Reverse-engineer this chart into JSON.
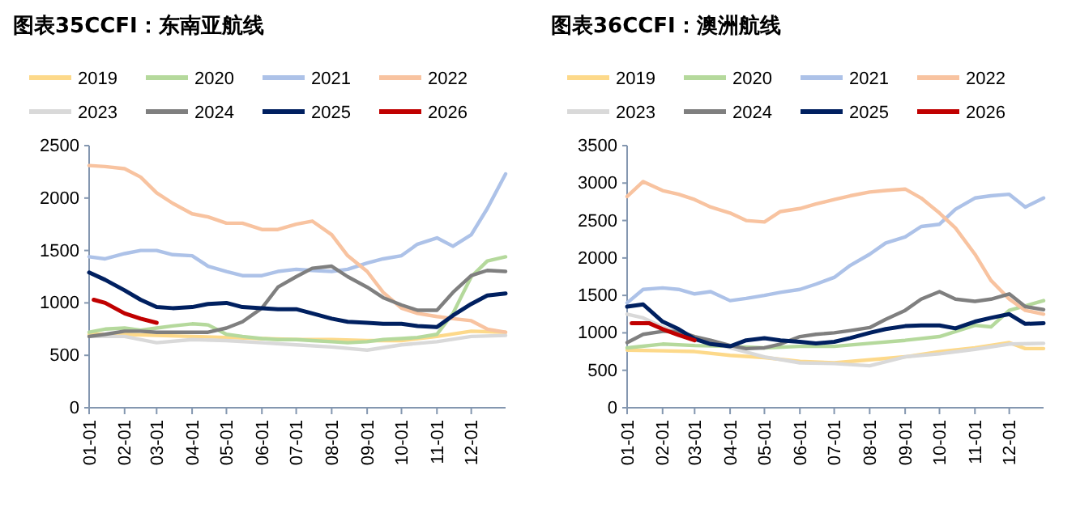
{
  "chart_data": [
    {
      "type": "line",
      "title": "图表35CCFI：东南亚航线",
      "legend": "top",
      "grid": false,
      "marker": "none",
      "line_style": "solid",
      "xlim": [
        "--01-01",
        "--12-31"
      ],
      "ylim": [
        0,
        2500
      ],
      "yticks": [
        0,
        500,
        1000,
        1500,
        2000,
        2500
      ],
      "xticks": [
        {
          "value": "--01-01",
          "label": "01-01"
        },
        {
          "value": "--02-01",
          "label": "02-01"
        },
        {
          "value": "--03-01",
          "label": "03-01"
        },
        {
          "value": "--04-01",
          "label": "04-01"
        },
        {
          "value": "--05-01",
          "label": "05-01"
        },
        {
          "value": "--06-01",
          "label": "06-01"
        },
        {
          "value": "--07-01",
          "label": "07-01"
        },
        {
          "value": "--08-01",
          "label": "08-01"
        },
        {
          "value": "--09-01",
          "label": "09-01"
        },
        {
          "value": "--10-01",
          "label": "10-01"
        },
        {
          "value": "--11-01",
          "label": "11-01"
        },
        {
          "value": "--12-01",
          "label": "12-01"
        }
      ],
      "series": [
        {
          "name": "2019",
          "color": "#fdd98a",
          "x": [
            "--01-01",
            "--02-01",
            "--03-01",
            "--04-01",
            "--05-01",
            "--06-01",
            "--07-01",
            "--08-01",
            "--09-01",
            "--10-01",
            "--11-01",
            "--12-01",
            "--12-31"
          ],
          "values": [
            700,
            700,
            690,
            680,
            670,
            660,
            650,
            650,
            640,
            640,
            680,
            730,
            720
          ]
        },
        {
          "name": "2020",
          "color": "#b5d99c",
          "x": [
            "--01-01",
            "--01-15",
            "--02-01",
            "--02-15",
            "--03-01",
            "--03-15",
            "--04-01",
            "--04-15",
            "--05-01",
            "--05-15",
            "--06-01",
            "--06-15",
            "--07-01",
            "--07-15",
            "--08-01",
            "--08-15",
            "--09-01",
            "--09-15",
            "--10-01",
            "--10-15",
            "--11-01",
            "--11-15",
            "--12-01",
            "--12-15",
            "--12-31"
          ],
          "values": [
            720,
            750,
            760,
            740,
            760,
            780,
            800,
            790,
            700,
            680,
            660,
            650,
            650,
            640,
            630,
            620,
            630,
            650,
            660,
            670,
            700,
            900,
            1250,
            1400,
            1440
          ]
        },
        {
          "name": "2021",
          "color": "#adc2e8",
          "x": [
            "--01-01",
            "--01-15",
            "--02-01",
            "--02-15",
            "--03-01",
            "--03-15",
            "--04-01",
            "--04-15",
            "--05-01",
            "--05-15",
            "--06-01",
            "--06-15",
            "--07-01",
            "--07-15",
            "--08-01",
            "--08-15",
            "--09-01",
            "--09-15",
            "--10-01",
            "--10-15",
            "--11-01",
            "--11-15",
            "--12-01",
            "--12-15",
            "--12-31"
          ],
          "values": [
            1440,
            1420,
            1470,
            1500,
            1500,
            1460,
            1450,
            1350,
            1300,
            1260,
            1260,
            1300,
            1320,
            1310,
            1300,
            1320,
            1380,
            1420,
            1450,
            1560,
            1620,
            1540,
            1650,
            1900,
            2230
          ]
        },
        {
          "name": "2022",
          "color": "#f8c3a0",
          "x": [
            "--01-01",
            "--01-15",
            "--02-01",
            "--02-15",
            "--03-01",
            "--03-15",
            "--04-01",
            "--04-15",
            "--05-01",
            "--05-15",
            "--06-01",
            "--06-15",
            "--07-01",
            "--07-15",
            "--08-01",
            "--08-15",
            "--09-01",
            "--09-15",
            "--10-01",
            "--10-15",
            "--11-01",
            "--11-15",
            "--12-01",
            "--12-15",
            "--12-31"
          ],
          "values": [
            2310,
            2300,
            2280,
            2200,
            2050,
            1950,
            1850,
            1820,
            1760,
            1760,
            1700,
            1700,
            1750,
            1780,
            1650,
            1450,
            1300,
            1100,
            950,
            900,
            870,
            850,
            830,
            750,
            720
          ]
        },
        {
          "name": "2023",
          "color": "#d9d9d9",
          "x": [
            "--01-01",
            "--02-01",
            "--03-01",
            "--04-01",
            "--05-01",
            "--06-01",
            "--07-01",
            "--08-01",
            "--09-01",
            "--10-01",
            "--11-01",
            "--12-01",
            "--12-31"
          ],
          "values": [
            680,
            680,
            620,
            650,
            640,
            620,
            600,
            580,
            550,
            600,
            630,
            680,
            690
          ]
        },
        {
          "name": "2024",
          "color": "#7f7f7f",
          "x": [
            "--01-01",
            "--01-15",
            "--02-01",
            "--02-15",
            "--03-01",
            "--03-15",
            "--04-01",
            "--04-15",
            "--05-01",
            "--05-15",
            "--06-01",
            "--06-15",
            "--07-01",
            "--07-15",
            "--08-01",
            "--08-15",
            "--09-01",
            "--09-15",
            "--10-01",
            "--10-15",
            "--11-01",
            "--11-15",
            "--12-01",
            "--12-15",
            "--12-31"
          ],
          "values": [
            680,
            700,
            730,
            730,
            720,
            720,
            720,
            720,
            760,
            820,
            950,
            1150,
            1250,
            1330,
            1350,
            1250,
            1150,
            1050,
            980,
            930,
            930,
            1100,
            1260,
            1310,
            1300
          ]
        },
        {
          "name": "2025",
          "color": "#002060",
          "x": [
            "--01-01",
            "--01-15",
            "--02-01",
            "--02-15",
            "--03-01",
            "--03-15",
            "--04-01",
            "--04-15",
            "--05-01",
            "--05-15",
            "--06-01",
            "--06-15",
            "--07-01",
            "--07-15",
            "--08-01",
            "--08-15",
            "--09-01",
            "--09-15",
            "--10-01",
            "--10-15",
            "--11-01",
            "--11-15",
            "--12-01",
            "--12-15",
            "--12-31"
          ],
          "values": [
            1290,
            1220,
            1120,
            1030,
            960,
            950,
            960,
            990,
            1000,
            960,
            950,
            940,
            940,
            900,
            850,
            820,
            810,
            800,
            800,
            780,
            770,
            880,
            990,
            1070,
            1090
          ]
        },
        {
          "name": "2026",
          "color": "#c00000",
          "x": [
            "--01-05",
            "--01-15",
            "--02-01",
            "--02-15",
            "--03-01"
          ],
          "values": [
            1030,
            1000,
            900,
            850,
            810
          ]
        }
      ]
    },
    {
      "type": "line",
      "title": "图表36CCFI：澳洲航线",
      "legend": "top",
      "grid": false,
      "marker": "none",
      "line_style": "solid",
      "xlim": [
        "--01-01",
        "--12-31"
      ],
      "ylim": [
        0,
        3500
      ],
      "yticks": [
        0,
        500,
        1000,
        1500,
        2000,
        2500,
        3000,
        3500
      ],
      "xticks": [
        {
          "value": "--01-01",
          "label": "01-01"
        },
        {
          "value": "--02-01",
          "label": "02-01"
        },
        {
          "value": "--03-01",
          "label": "03-01"
        },
        {
          "value": "--04-01",
          "label": "04-01"
        },
        {
          "value": "--05-01",
          "label": "05-01"
        },
        {
          "value": "--06-01",
          "label": "06-01"
        },
        {
          "value": "--07-01",
          "label": "07-01"
        },
        {
          "value": "--08-01",
          "label": "08-01"
        },
        {
          "value": "--09-01",
          "label": "09-01"
        },
        {
          "value": "--10-01",
          "label": "10-01"
        },
        {
          "value": "--11-01",
          "label": "11-01"
        },
        {
          "value": "--12-01",
          "label": "12-01"
        }
      ],
      "series": [
        {
          "name": "2019",
          "color": "#fdd98a",
          "x": [
            "--01-01",
            "--02-01",
            "--03-01",
            "--04-01",
            "--05-01",
            "--06-01",
            "--07-01",
            "--08-01",
            "--09-01",
            "--10-01",
            "--11-01",
            "--12-01",
            "--12-15",
            "--12-31"
          ],
          "values": [
            770,
            760,
            750,
            700,
            670,
            620,
            600,
            640,
            680,
            750,
            800,
            870,
            790,
            790
          ]
        },
        {
          "name": "2020",
          "color": "#b5d99c",
          "x": [
            "--01-01",
            "--02-01",
            "--03-01",
            "--04-01",
            "--05-01",
            "--06-01",
            "--07-01",
            "--08-01",
            "--09-01",
            "--10-01",
            "--11-01",
            "--11-15",
            "--12-01",
            "--12-31"
          ],
          "values": [
            800,
            850,
            830,
            820,
            800,
            820,
            820,
            860,
            900,
            950,
            1100,
            1080,
            1300,
            1430
          ]
        },
        {
          "name": "2021",
          "color": "#adc2e8",
          "x": [
            "--01-01",
            "--01-15",
            "--02-01",
            "--02-15",
            "--03-01",
            "--03-15",
            "--04-01",
            "--04-15",
            "--05-01",
            "--05-15",
            "--06-01",
            "--06-15",
            "--07-01",
            "--07-15",
            "--08-01",
            "--08-15",
            "--09-01",
            "--09-15",
            "--10-01",
            "--10-15",
            "--11-01",
            "--11-15",
            "--12-01",
            "--12-15",
            "--12-31"
          ],
          "values": [
            1400,
            1580,
            1600,
            1580,
            1520,
            1550,
            1430,
            1460,
            1500,
            1540,
            1580,
            1650,
            1740,
            1900,
            2050,
            2200,
            2280,
            2420,
            2450,
            2650,
            2800,
            2830,
            2850,
            2680,
            2800
          ]
        },
        {
          "name": "2022",
          "color": "#f8c3a0",
          "x": [
            "--01-01",
            "--01-15",
            "--02-01",
            "--02-15",
            "--03-01",
            "--03-15",
            "--04-01",
            "--04-15",
            "--05-01",
            "--05-15",
            "--06-01",
            "--06-15",
            "--07-01",
            "--07-15",
            "--08-01",
            "--08-15",
            "--09-01",
            "--09-15",
            "--10-01",
            "--10-15",
            "--11-01",
            "--11-15",
            "--12-01",
            "--12-15",
            "--12-31"
          ],
          "values": [
            2820,
            3020,
            2900,
            2850,
            2780,
            2680,
            2600,
            2500,
            2480,
            2620,
            2660,
            2720,
            2780,
            2830,
            2880,
            2900,
            2920,
            2800,
            2600,
            2400,
            2050,
            1700,
            1450,
            1300,
            1250
          ]
        },
        {
          "name": "2023",
          "color": "#d9d9d9",
          "x": [
            "--01-01",
            "--01-15",
            "--02-01",
            "--02-15",
            "--03-01",
            "--04-01",
            "--05-01",
            "--06-01",
            "--07-01",
            "--08-01",
            "--09-01",
            "--10-01",
            "--11-01",
            "--12-01",
            "--12-31"
          ],
          "values": [
            1250,
            1200,
            1080,
            1000,
            930,
            800,
            680,
            600,
            590,
            560,
            680,
            720,
            780,
            850,
            860
          ]
        },
        {
          "name": "2024",
          "color": "#7f7f7f",
          "x": [
            "--01-01",
            "--01-15",
            "--02-01",
            "--02-15",
            "--03-01",
            "--03-15",
            "--04-01",
            "--04-15",
            "--05-01",
            "--05-15",
            "--06-01",
            "--06-15",
            "--07-01",
            "--07-15",
            "--08-01",
            "--08-15",
            "--09-01",
            "--09-15",
            "--10-01",
            "--10-15",
            "--11-01",
            "--11-15",
            "--12-01",
            "--12-15",
            "--12-31"
          ],
          "values": [
            870,
            980,
            1020,
            1020,
            950,
            900,
            830,
            790,
            800,
            850,
            950,
            980,
            1000,
            1030,
            1070,
            1180,
            1300,
            1450,
            1550,
            1450,
            1420,
            1450,
            1520,
            1350,
            1310
          ]
        },
        {
          "name": "2025",
          "color": "#002060",
          "x": [
            "--01-01",
            "--01-15",
            "--02-01",
            "--02-15",
            "--03-01",
            "--03-15",
            "--04-01",
            "--04-15",
            "--05-01",
            "--05-15",
            "--06-01",
            "--06-15",
            "--07-01",
            "--07-15",
            "--08-01",
            "--08-15",
            "--09-01",
            "--09-15",
            "--10-01",
            "--10-15",
            "--11-01",
            "--11-15",
            "--12-01",
            "--12-15",
            "--12-31"
          ],
          "values": [
            1350,
            1380,
            1150,
            1050,
            920,
            850,
            820,
            900,
            930,
            900,
            880,
            860,
            880,
            930,
            1000,
            1050,
            1090,
            1100,
            1100,
            1060,
            1150,
            1200,
            1250,
            1120,
            1130
          ]
        },
        {
          "name": "2026",
          "color": "#c00000",
          "x": [
            "--01-05",
            "--01-20",
            "--02-01",
            "--02-15",
            "--03-01"
          ],
          "values": [
            1130,
            1130,
            1050,
            970,
            900
          ]
        }
      ]
    }
  ]
}
